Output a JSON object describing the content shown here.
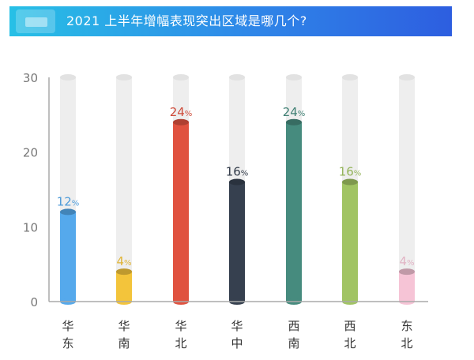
{
  "header": {
    "title": "2021 上半年增幅表现突出区域是哪几个?"
  },
  "colors": {
    "banner_start": "#27c0e6",
    "banner_end": "#2d5ee0",
    "track": "#eeeeee",
    "axis": "#aaaaaa"
  },
  "chart_data": {
    "type": "bar",
    "title": "",
    "xlabel": "",
    "ylabel": "",
    "ylim": [
      0,
      30
    ],
    "yticks": [
      "0",
      "10",
      "20",
      "30"
    ],
    "unit": "%",
    "categories": [
      "华东",
      "华南",
      "华北",
      "华中",
      "西南",
      "西北",
      "东北"
    ],
    "values": [
      12,
      4,
      24,
      16,
      24,
      16,
      4
    ],
    "labels": [
      "12",
      "4",
      "24",
      "16",
      "24",
      "16",
      "4"
    ],
    "colors": [
      "#55a9ec",
      "#f3c43b",
      "#e0523f",
      "#36404f",
      "#468b7e",
      "#a1c463",
      "#f6c4d6"
    ],
    "grid": false,
    "legend": "none"
  }
}
